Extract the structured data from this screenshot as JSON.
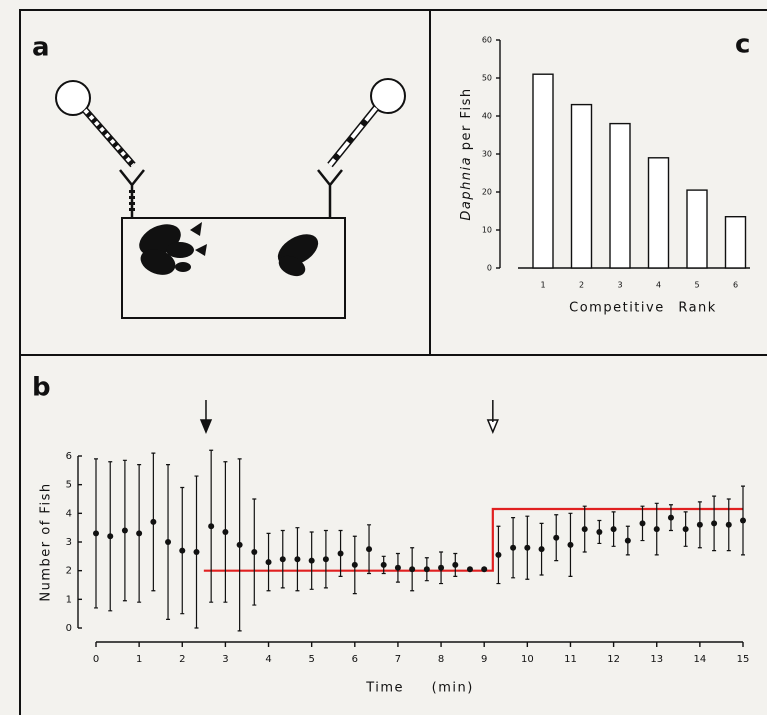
{
  "diagram": {
    "label": "a"
  },
  "chart_data": [
    {
      "type": "bar",
      "panel_label": "c",
      "ylabel_italic": "Daphnia",
      "ylabel": "per Fish",
      "xlabel": "Competitive Rank",
      "categories": [
        "1",
        "2",
        "3",
        "4",
        "5",
        "6"
      ],
      "values": [
        51,
        43,
        38,
        29,
        20.5,
        13.5
      ],
      "color": "#ffffff",
      "ylim": [
        0,
        60
      ],
      "yticks": [
        0,
        10,
        20,
        30,
        40,
        50,
        60
      ]
    },
    {
      "type": "errorbar",
      "panel_label": "b",
      "ylabel": "Number of Fish",
      "xlabel": "Time (min)",
      "x": [
        0,
        0.33,
        0.67,
        1,
        1.33,
        1.67,
        2,
        2.33,
        2.67,
        3,
        3.33,
        3.67,
        4,
        4.33,
        4.67,
        5,
        5.33,
        5.67,
        6,
        6.33,
        6.67,
        7,
        7.33,
        7.67,
        8,
        8.33,
        8.67,
        9,
        9.33,
        9.67,
        10,
        10.33,
        10.67,
        11,
        11.33,
        11.67,
        12,
        12.33,
        12.67,
        13,
        13.33,
        13.67,
        14,
        14.33,
        14.67,
        15
      ],
      "values": [
        3.3,
        3.2,
        3.4,
        3.3,
        3.7,
        3.0,
        2.7,
        2.65,
        3.55,
        3.35,
        2.9,
        2.65,
        2.3,
        2.4,
        2.4,
        2.35,
        2.4,
        2.6,
        2.2,
        2.75,
        2.2,
        2.1,
        2.05,
        2.05,
        2.1,
        2.2,
        2.05,
        2.05,
        2.55,
        2.8,
        2.8,
        2.75,
        3.15,
        2.9,
        3.45,
        3.35,
        3.45,
        3.05,
        3.65,
        3.45,
        3.85,
        3.45,
        3.6,
        3.65,
        3.6,
        3.75
      ],
      "errors": [
        2.6,
        2.6,
        2.45,
        2.4,
        2.4,
        2.7,
        2.2,
        2.65,
        2.65,
        2.45,
        3.0,
        1.85,
        1.0,
        1.0,
        1.1,
        1.0,
        1.0,
        0.8,
        1.0,
        0.85,
        0.3,
        0.5,
        0.75,
        0.4,
        0.55,
        0.4,
        0,
        0,
        1.0,
        1.05,
        1.1,
        0.9,
        0.8,
        1.1,
        0.8,
        0.4,
        0.6,
        0.5,
        0.6,
        0.9,
        0.45,
        0.6,
        0.8,
        0.95,
        0.9,
        1.2
      ],
      "color": "#111111",
      "step": {
        "x": [
          2.5,
          9.2,
          9.2,
          15
        ],
        "values": [
          2,
          2,
          4.15,
          4.15
        ],
        "color": "#e02020"
      },
      "arrows": [
        {
          "x": 2.55,
          "style": "filled"
        },
        {
          "x": 9.2,
          "style": "open"
        }
      ],
      "xlim": [
        0,
        15
      ],
      "xticks": [
        0,
        1,
        2,
        3,
        4,
        5,
        6,
        7,
        8,
        9,
        10,
        11,
        12,
        13,
        14,
        15
      ],
      "ylim": [
        0,
        6
      ],
      "yticks": [
        0,
        1,
        2,
        3,
        4,
        5,
        6
      ]
    }
  ]
}
